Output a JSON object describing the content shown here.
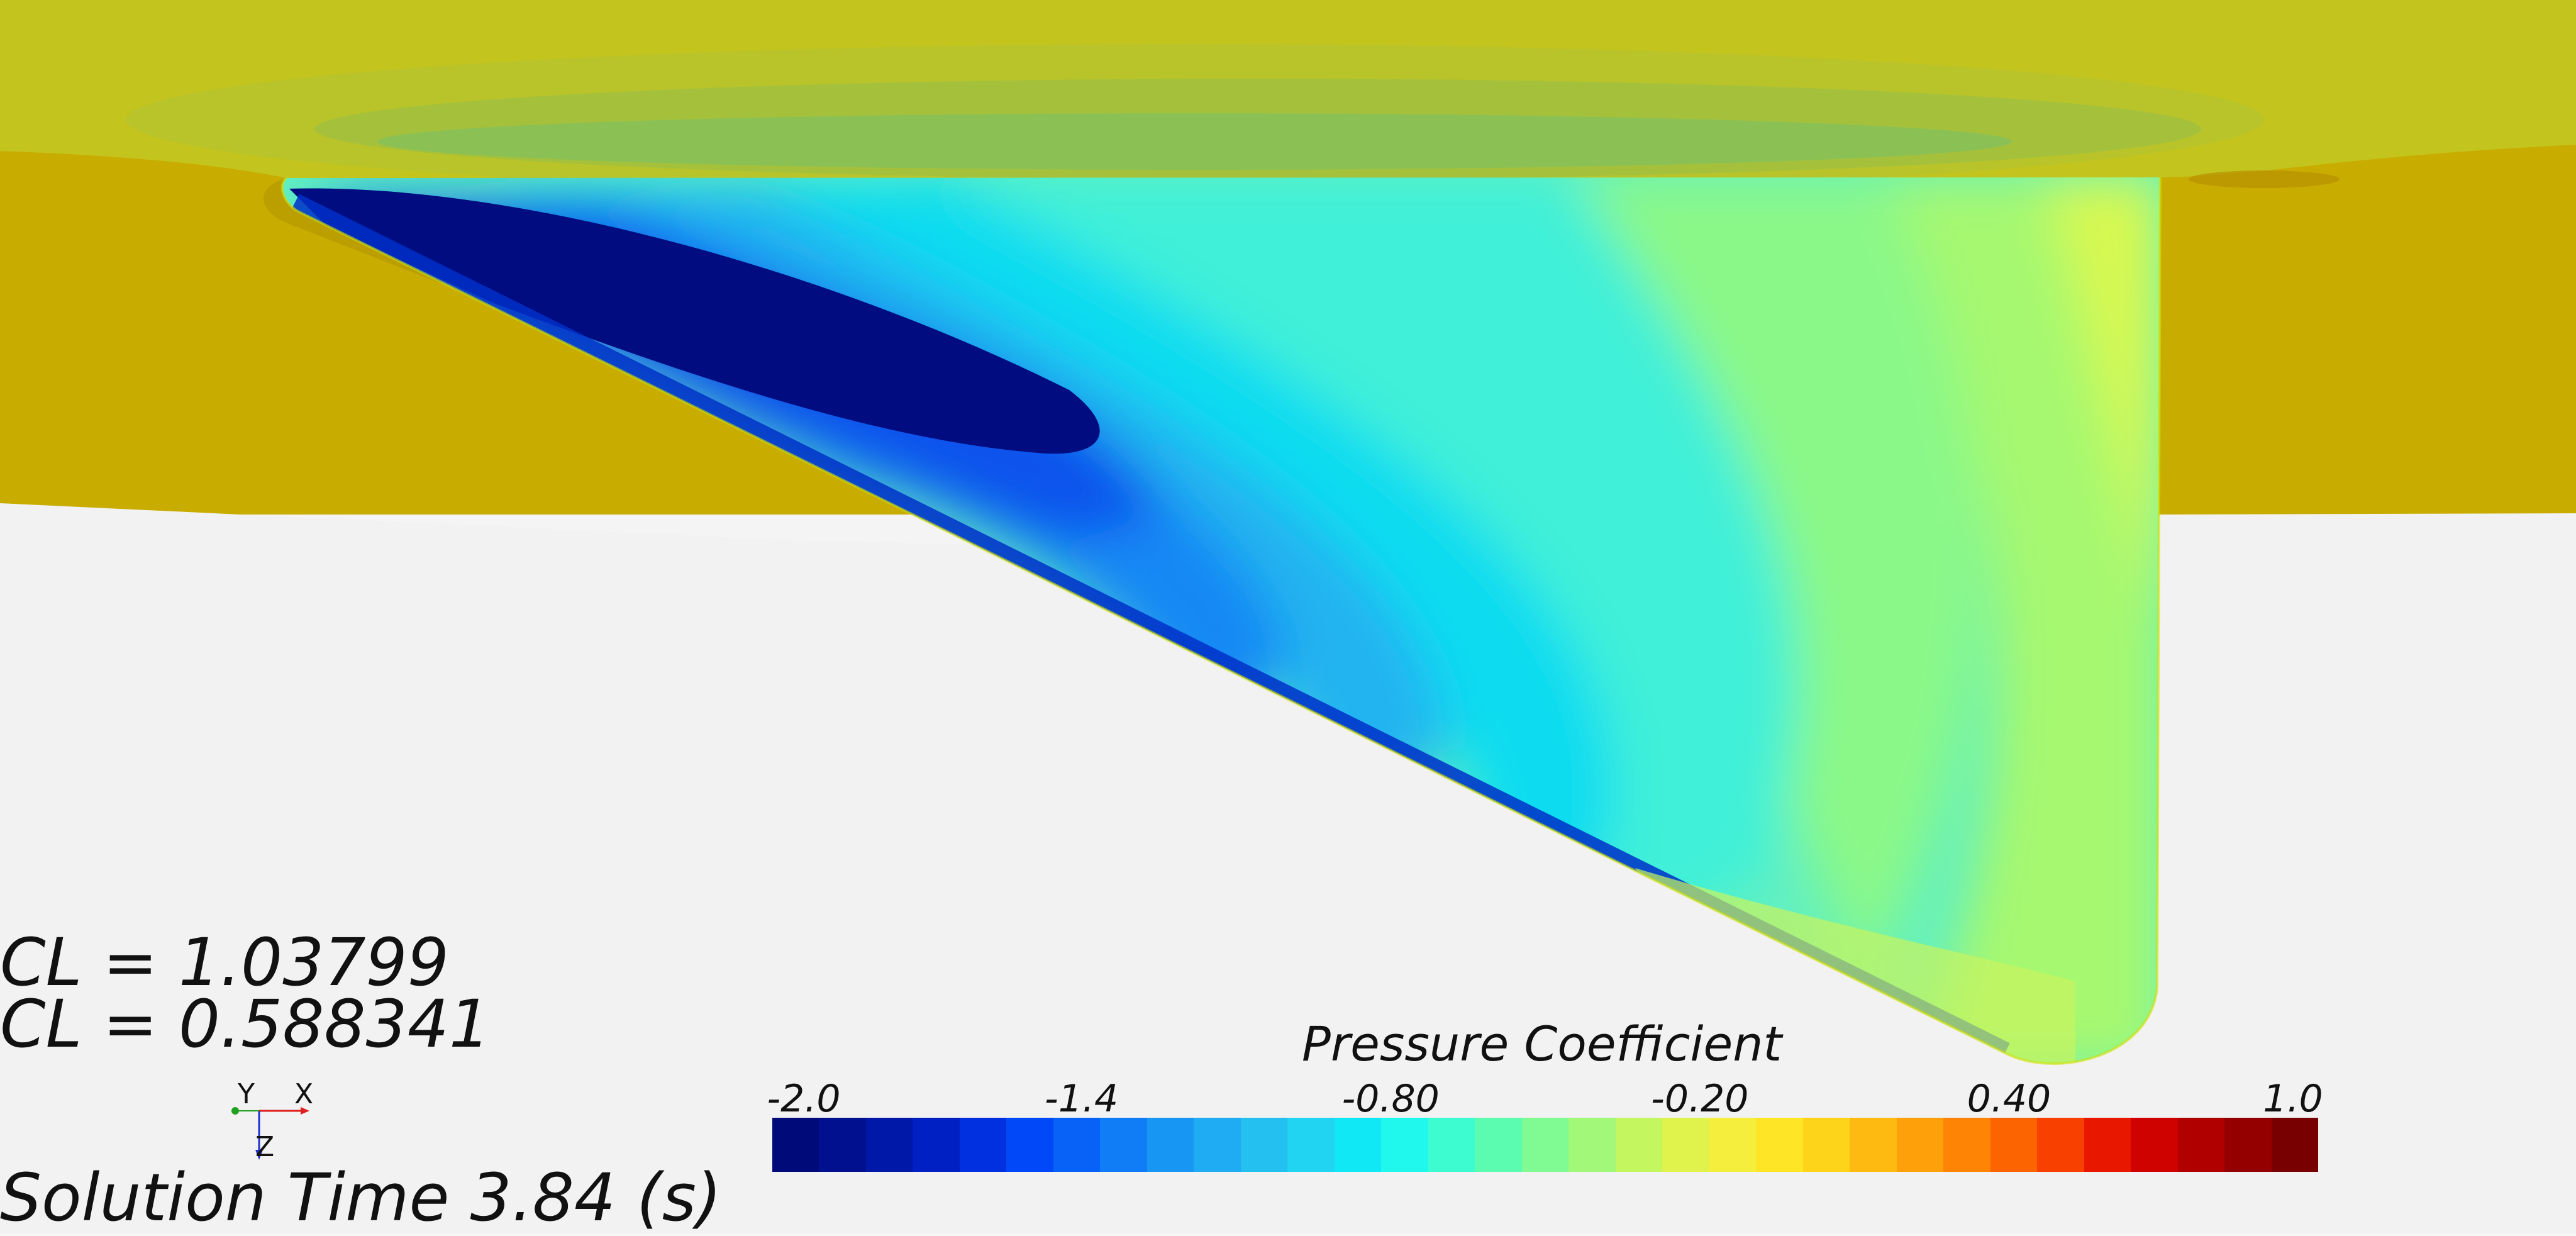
{
  "readouts": {
    "cl_1": "CL = 1.03799",
    "cl_2": "CL = 0.588341",
    "solution_time": "Solution Time 3.84 (s)"
  },
  "legend": {
    "title": "Pressure Coefficient",
    "ticks": [
      "-2.0",
      "-1.4",
      "-0.80",
      "-0.20",
      "0.40",
      "1.0"
    ],
    "min": -2.0,
    "max": 1.0,
    "colors": [
      "#000a78",
      "#00108f",
      "#0018a8",
      "#0020c4",
      "#0030e0",
      "#0048f8",
      "#0862f8",
      "#107cf6",
      "#1896f4",
      "#20acf2",
      "#24c0f0",
      "#20d4f2",
      "#10e8f6",
      "#20f8ee",
      "#3cfcd0",
      "#5cfcb0",
      "#80fa92",
      "#a2f878",
      "#c4f660",
      "#e0f24c",
      "#f6ee3c",
      "#fee626",
      "#fed41a",
      "#feba10",
      "#fea00a",
      "#fe8406",
      "#fc6402",
      "#f84000",
      "#e81800",
      "#d00200",
      "#b00000",
      "#940000",
      "#780000"
    ]
  },
  "axes": {
    "y": "Y",
    "x": "X",
    "z": "Z"
  },
  "colors": {
    "hull_surface": "#c8ad00",
    "background": "#f4f4f4"
  }
}
